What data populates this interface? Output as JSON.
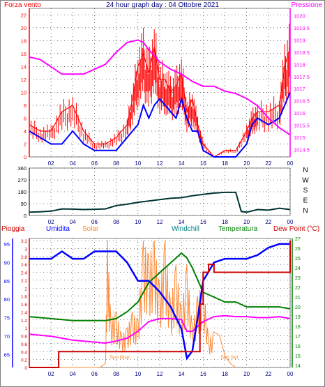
{
  "title": "24 hour graph day : 04 Ottobre 2021",
  "colors": {
    "wind": "#ff0000",
    "pressure": "#ff00ff",
    "direction": "#003333",
    "rain": "#cc0000",
    "humidity": "#0000ff",
    "solar": "#ff8833",
    "windchill": "#008080",
    "temperature": "#008000",
    "dewpoint": "#ff00ff",
    "grid": "#000000",
    "frame": "#808080"
  },
  "chart_data": [
    {
      "type": "line",
      "title": "24 hour graph day : 04 Ottobre 2021",
      "x_ticks": [
        "02",
        "04",
        "06",
        "08",
        "10",
        "12",
        "14",
        "16",
        "18",
        "20",
        "22",
        "00"
      ],
      "y_left": {
        "label": "Forza vento",
        "ticks": [
          0,
          2,
          4,
          6,
          8,
          10,
          12,
          14,
          16,
          18,
          20,
          22
        ],
        "range": [
          0,
          23
        ]
      },
      "y_right": {
        "label": "Pressione",
        "ticks": [
          "1014.5",
          "1015",
          "1015.5",
          "1016",
          "1016.5",
          "1017",
          "1017.5",
          "1018",
          "1018.5",
          "1019",
          "1019.5",
          "1020"
        ],
        "range": [
          1014.2,
          1020.3
        ]
      },
      "series": [
        {
          "name": "Forza vento",
          "axis": "left",
          "x": [
            0,
            1,
            2,
            3,
            4,
            5,
            6,
            7,
            8,
            9,
            9.5,
            10,
            10.5,
            11,
            11.5,
            12,
            12.5,
            13,
            13.5,
            14,
            14.5,
            15,
            15.5,
            16,
            17,
            18,
            19,
            20,
            20.5,
            21,
            22,
            23,
            23.5,
            24
          ],
          "y": [
            5,
            4,
            4,
            7,
            8,
            4,
            2,
            2,
            3,
            5,
            9,
            14,
            16,
            13,
            17,
            12,
            12,
            10,
            11,
            13,
            7,
            9,
            5,
            2,
            0,
            1,
            1,
            4,
            6,
            7,
            7,
            8,
            14,
            17
          ]
        },
        {
          "name": "Pressione",
          "axis": "right",
          "x": [
            0,
            1,
            2,
            3,
            4,
            5,
            6,
            7,
            8,
            9,
            10,
            10.5,
            11,
            12,
            13,
            14,
            15,
            16,
            17,
            18,
            19,
            20,
            21,
            22,
            23,
            24
          ],
          "y": [
            1018.3,
            1018.2,
            1017.9,
            1017.6,
            1017.6,
            1017.6,
            1017.8,
            1018.0,
            1018.5,
            1018.9,
            1019.0,
            1018.9,
            1018.6,
            1018.1,
            1017.8,
            1017.6,
            1017.3,
            1017.1,
            1017.1,
            1016.9,
            1016.8,
            1016.6,
            1016.3,
            1015.8,
            1015.4,
            1015.1
          ]
        },
        {
          "name": "Forza vento (media)",
          "axis": "left",
          "x": [
            0,
            1,
            2,
            3,
            4,
            5,
            6,
            7,
            8,
            9,
            10,
            10.5,
            11,
            11.5,
            12,
            12.5,
            13,
            13.5,
            14,
            14.5,
            15,
            15.5,
            16,
            17,
            18,
            19,
            20,
            20.5,
            21,
            22,
            23,
            24
          ],
          "y": [
            4,
            3,
            2,
            2,
            4,
            2,
            1,
            1,
            1,
            3,
            5,
            8,
            6,
            8,
            9,
            8,
            7,
            6,
            9,
            6,
            4,
            4,
            1,
            0,
            0,
            0,
            2,
            5,
            6,
            5,
            6,
            10
          ]
        }
      ]
    },
    {
      "type": "line",
      "x_ticks": [
        "02",
        "04",
        "06",
        "08",
        "10",
        "12",
        "14",
        "16",
        "18",
        "20",
        "22",
        "00"
      ],
      "y_left": {
        "ticks": [
          0,
          90,
          180,
          270,
          360
        ],
        "range": [
          0,
          360
        ]
      },
      "y_right_labels": [
        "N",
        "W",
        "S",
        "E",
        "N"
      ],
      "series": [
        {
          "name": "Direzione vento",
          "x": [
            0,
            1,
            2,
            3,
            4,
            5,
            6,
            7,
            8,
            9,
            10,
            11,
            12,
            13,
            14,
            15,
            16,
            17,
            18,
            19,
            19.5,
            20,
            21,
            22,
            23,
            24
          ],
          "y": [
            25,
            28,
            33,
            50,
            48,
            45,
            47,
            50,
            75,
            85,
            100,
            110,
            120,
            130,
            135,
            150,
            160,
            170,
            175,
            175,
            30,
            25,
            45,
            40,
            55,
            45
          ]
        }
      ]
    },
    {
      "type": "line",
      "x_ticks": [
        "02",
        "04",
        "06",
        "08",
        "10",
        "12",
        "14",
        "16",
        "18",
        "20",
        "22",
        "00"
      ],
      "legend": [
        "Pioggia",
        "Umidita",
        "Solar",
        "Windchill",
        "Temperatura",
        "Dew Point (°C)"
      ],
      "y_left_outer": {
        "label": "Umidita",
        "ticks": [
          65,
          70,
          75,
          80,
          85,
          90,
          95
        ],
        "range": [
          61.5,
          96.5
        ]
      },
      "y_left_inner": {
        "label": "Pioggia",
        "ticks": [
          "0",
          "0.2",
          "0.4",
          "0.6",
          "0.8",
          "1",
          "1.2",
          "1.4",
          "1.6",
          "1.8",
          "2",
          "2.2",
          "2.4",
          "2.6",
          "2.8",
          "3",
          "3.2"
        ],
        "range": [
          0,
          3.2
        ]
      },
      "y_right": {
        "label": "Temperatura",
        "ticks": [
          14,
          15,
          16,
          17,
          18,
          19,
          20,
          21,
          22,
          23,
          24,
          25,
          26,
          27
        ],
        "range": [
          13.8,
          27
        ]
      },
      "annotations": [
        "Sun Rise",
        "Sun Set"
      ],
      "series": [
        {
          "name": "Pioggia",
          "axis": "rain",
          "x": [
            0,
            2.7,
            2.7,
            15.7,
            15.7,
            16.0,
            16.0,
            16.5,
            16.5,
            17,
            17,
            24,
            24
          ],
          "y": [
            0,
            0,
            0.4,
            0.4,
            1.6,
            1.6,
            2.4,
            2.4,
            2.6,
            2.6,
            2.4,
            2.4,
            3.2
          ]
        },
        {
          "name": "Umidita",
          "axis": "humidity",
          "x": [
            0,
            2,
            3,
            4,
            5,
            6,
            7,
            8,
            9,
            10,
            11,
            12,
            13,
            14,
            14.5,
            15,
            15.5,
            16,
            17,
            18,
            19,
            20,
            21,
            22,
            23,
            24
          ],
          "y": [
            91,
            91,
            93,
            91,
            91,
            93,
            93,
            93,
            90,
            85,
            85,
            82,
            78,
            72,
            64,
            66,
            75,
            85,
            90,
            91,
            91,
            91,
            92,
            94,
            95,
            95
          ]
        },
        {
          "name": "Solar",
          "axis": "rain",
          "x": [
            0,
            6.5,
            7,
            7.2,
            7.5,
            8,
            8.5,
            9,
            9.5,
            10,
            10.5,
            11,
            11.5,
            12,
            12.5,
            13,
            13.5,
            14,
            14.5,
            15,
            15.5,
            16,
            16.5,
            17,
            17.5,
            18,
            18.5,
            19
          ],
          "y": [
            0,
            0,
            0.1,
            3.2,
            1.2,
            1.4,
            0.8,
            1.0,
            1.4,
            1.2,
            3.2,
            2.8,
            3.2,
            2.0,
            3.2,
            1.6,
            2.6,
            1.4,
            2.6,
            1.0,
            1.8,
            2.2,
            0.7,
            0.9,
            0.8,
            0.3,
            0.1,
            0
          ]
        },
        {
          "name": "Temperatura",
          "axis": "temp",
          "x": [
            0,
            1,
            2,
            3,
            4,
            5,
            6,
            7,
            8,
            9,
            10,
            11,
            12,
            13,
            14,
            14.5,
            15,
            16,
            17,
            18,
            19,
            20,
            21,
            22,
            23,
            24
          ],
          "y": [
            19,
            18.9,
            18.8,
            18.7,
            18.6,
            18.6,
            18.6,
            18.6,
            18.8,
            19.5,
            20.5,
            22.5,
            23.5,
            24.5,
            25.5,
            25,
            24,
            21.5,
            21,
            20.5,
            20.5,
            20,
            20,
            20,
            20,
            19.8
          ]
        },
        {
          "name": "Dew Point",
          "axis": "temp",
          "x": [
            0,
            1,
            2,
            3,
            4,
            5,
            6,
            7,
            8,
            9,
            10,
            11,
            12,
            13,
            14,
            14.5,
            15,
            16,
            17,
            18,
            19,
            20,
            21,
            22,
            23,
            24
          ],
          "y": [
            17.2,
            17.1,
            17.0,
            16.8,
            16.6,
            16.5,
            16.4,
            16.3,
            16.5,
            16.8,
            17.5,
            18.5,
            18.8,
            18.8,
            18.7,
            17.5,
            17.5,
            18.5,
            19,
            19.1,
            19.0,
            19.0,
            18.9,
            18.9,
            19.0,
            18.8
          ]
        }
      ]
    }
  ]
}
